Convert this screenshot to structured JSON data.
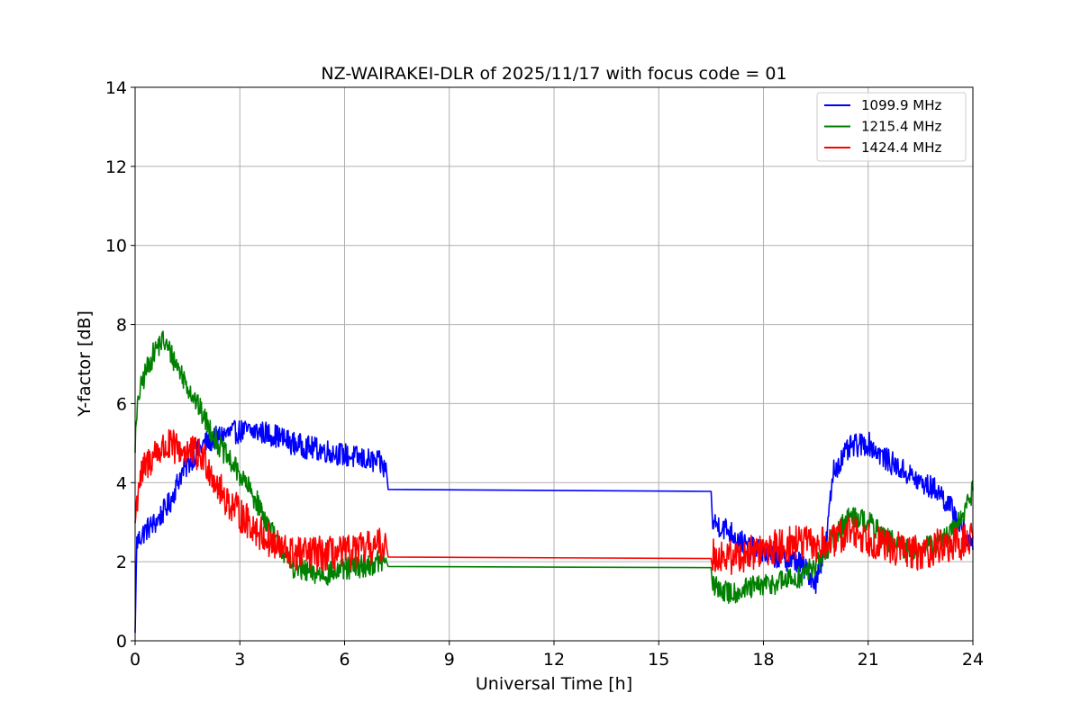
{
  "chart_data": {
    "type": "line",
    "title": "NZ-WAIRAKEI-DLR of 2025/11/17 with focus code = 01",
    "xlabel": "Universal Time [h]",
    "ylabel": "Y-factor [dB]",
    "xlim": [
      0,
      24
    ],
    "ylim": [
      0,
      14
    ],
    "xticks": [
      0,
      3,
      6,
      9,
      12,
      15,
      18,
      21,
      24
    ],
    "yticks": [
      0,
      2,
      4,
      6,
      8,
      10,
      12,
      14
    ],
    "xtick_labels": [
      "0",
      "3",
      "6",
      "9",
      "12",
      "15",
      "18",
      "21",
      "24"
    ],
    "ytick_labels": [
      "0",
      "2",
      "4",
      "6",
      "8",
      "10",
      "12",
      "14"
    ],
    "grid": true,
    "legend_position": "top-right",
    "series": [
      {
        "name": "1099.9 MHz",
        "color": "#0000ff",
        "noise": 0.3,
        "points": [
          [
            0.0,
            0.2
          ],
          [
            0.05,
            2.5
          ],
          [
            0.3,
            2.8
          ],
          [
            0.6,
            3.0
          ],
          [
            1.0,
            3.5
          ],
          [
            1.3,
            4.2
          ],
          [
            1.7,
            4.7
          ],
          [
            2.0,
            5.0
          ],
          [
            2.5,
            5.2
          ],
          [
            3.0,
            5.3
          ],
          [
            3.5,
            5.3
          ],
          [
            4.0,
            5.2
          ],
          [
            4.5,
            5.0
          ],
          [
            4.9,
            4.9
          ],
          [
            5.5,
            4.8
          ],
          [
            6.0,
            4.7
          ],
          [
            6.5,
            4.6
          ],
          [
            7.0,
            4.5
          ],
          [
            7.2,
            4.3
          ],
          [
            7.25,
            3.83
          ],
          [
            16.5,
            3.78
          ],
          [
            16.55,
            3.0
          ],
          [
            17.0,
            2.8
          ],
          [
            17.5,
            2.4
          ],
          [
            18.0,
            2.2
          ],
          [
            18.5,
            2.1
          ],
          [
            19.0,
            2.0
          ],
          [
            19.5,
            1.5
          ],
          [
            19.8,
            2.5
          ],
          [
            20.0,
            4.3
          ],
          [
            20.5,
            4.9
          ],
          [
            21.0,
            5.0
          ],
          [
            21.5,
            4.6
          ],
          [
            22.0,
            4.3
          ],
          [
            22.5,
            4.0
          ],
          [
            23.0,
            3.8
          ],
          [
            23.5,
            3.2
          ],
          [
            24.0,
            2.3
          ]
        ]
      },
      {
        "name": "1215.4 MHz",
        "color": "#008000",
        "noise": 0.3,
        "points": [
          [
            0.0,
            5.0
          ],
          [
            0.1,
            6.2
          ],
          [
            0.3,
            6.8
          ],
          [
            0.6,
            7.4
          ],
          [
            0.8,
            7.6
          ],
          [
            1.0,
            7.3
          ],
          [
            1.3,
            6.8
          ],
          [
            1.6,
            6.3
          ],
          [
            2.0,
            5.6
          ],
          [
            2.5,
            4.8
          ],
          [
            3.0,
            4.2
          ],
          [
            3.5,
            3.5
          ],
          [
            4.0,
            2.6
          ],
          [
            4.5,
            1.9
          ],
          [
            5.0,
            1.7
          ],
          [
            5.5,
            1.7
          ],
          [
            6.0,
            1.8
          ],
          [
            6.5,
            1.9
          ],
          [
            7.0,
            2.0
          ],
          [
            7.2,
            2.0
          ],
          [
            7.25,
            1.88
          ],
          [
            16.5,
            1.85
          ],
          [
            16.55,
            1.4
          ],
          [
            17.0,
            1.2
          ],
          [
            17.5,
            1.3
          ],
          [
            18.0,
            1.4
          ],
          [
            18.5,
            1.5
          ],
          [
            19.0,
            1.6
          ],
          [
            19.5,
            1.9
          ],
          [
            20.0,
            2.6
          ],
          [
            20.5,
            3.2
          ],
          [
            21.0,
            3.0
          ],
          [
            21.5,
            2.6
          ],
          [
            22.0,
            2.3
          ],
          [
            22.5,
            2.3
          ],
          [
            23.0,
            2.5
          ],
          [
            23.5,
            2.8
          ],
          [
            24.0,
            3.8
          ]
        ]
      },
      {
        "name": "1424.4 MHz",
        "color": "#ff0000",
        "noise": 0.45,
        "points": [
          [
            0.0,
            3.0
          ],
          [
            0.1,
            4.0
          ],
          [
            0.3,
            4.4
          ],
          [
            0.6,
            4.8
          ],
          [
            1.0,
            4.9
          ],
          [
            1.5,
            4.8
          ],
          [
            2.0,
            4.6
          ],
          [
            2.5,
            3.7
          ],
          [
            3.0,
            3.2
          ],
          [
            3.5,
            2.8
          ],
          [
            4.0,
            2.4
          ],
          [
            4.5,
            2.2
          ],
          [
            5.0,
            2.2
          ],
          [
            5.5,
            2.2
          ],
          [
            6.0,
            2.2
          ],
          [
            6.5,
            2.3
          ],
          [
            7.0,
            2.4
          ],
          [
            7.2,
            2.4
          ],
          [
            7.25,
            2.12
          ],
          [
            16.5,
            2.08
          ],
          [
            16.55,
            2.2
          ],
          [
            17.0,
            2.1
          ],
          [
            17.5,
            2.2
          ],
          [
            18.0,
            2.3
          ],
          [
            18.5,
            2.4
          ],
          [
            19.0,
            2.5
          ],
          [
            19.5,
            2.4
          ],
          [
            20.0,
            2.5
          ],
          [
            20.5,
            2.8
          ],
          [
            21.0,
            2.6
          ],
          [
            21.5,
            2.4
          ],
          [
            22.0,
            2.3
          ],
          [
            22.5,
            2.2
          ],
          [
            23.0,
            2.4
          ],
          [
            23.5,
            2.4
          ],
          [
            24.0,
            2.6
          ]
        ]
      }
    ]
  }
}
